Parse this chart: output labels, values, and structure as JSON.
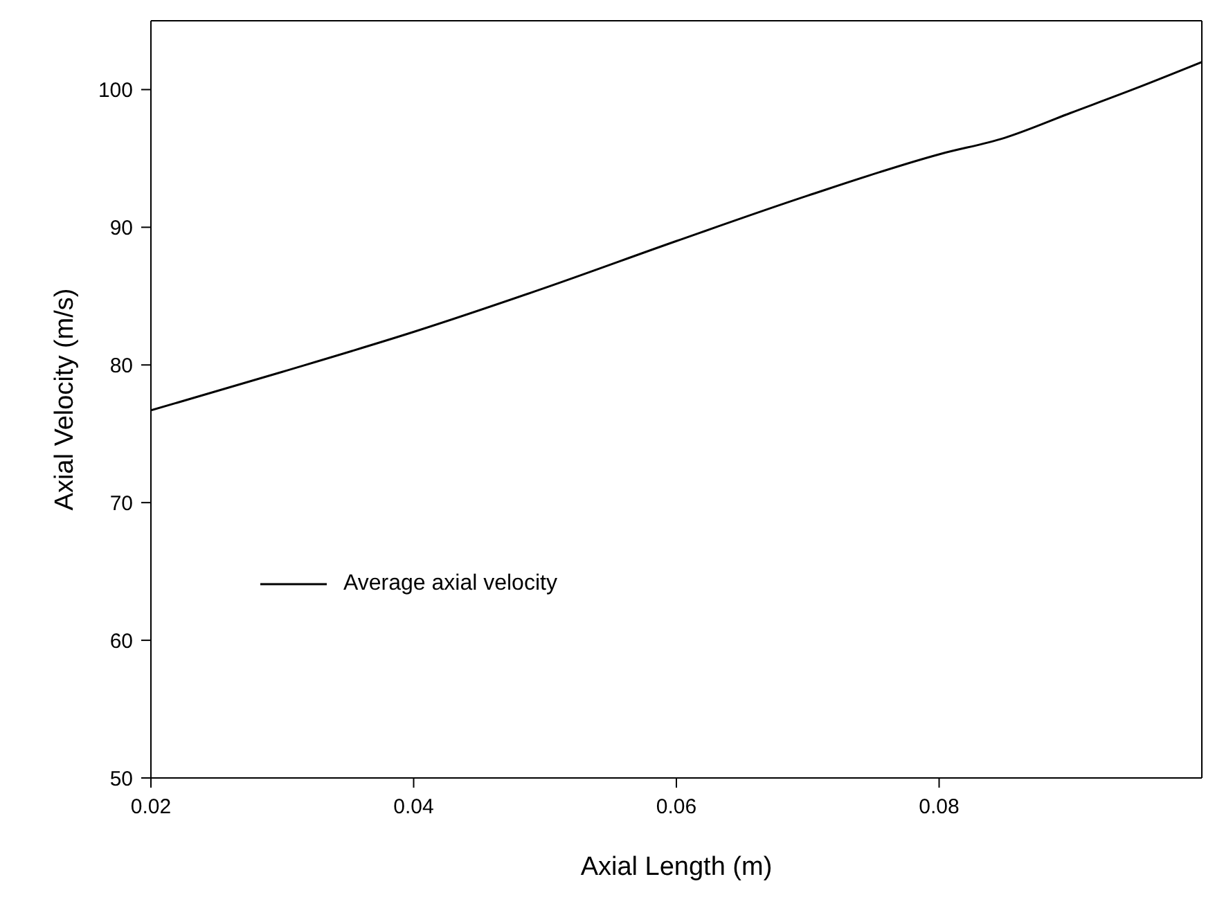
{
  "chart_data": {
    "type": "line",
    "xlabel": "Axial Length (m)",
    "ylabel": "Axial Velocity (m/s)",
    "x": [
      0.02,
      0.03,
      0.04,
      0.05,
      0.06,
      0.07,
      0.08,
      0.085,
      0.09,
      0.095,
      0.1
    ],
    "series": [
      {
        "name": "Average axial velocity",
        "color": "#000000",
        "values": [
          76.7,
          79.5,
          82.4,
          85.6,
          89.0,
          92.3,
          95.3,
          96.5,
          98.3,
          100.1,
          102.0
        ]
      }
    ],
    "xlim": [
      0.02,
      0.1
    ],
    "xticks": [
      0.02,
      0.04,
      0.06,
      0.08
    ],
    "ylim": [
      50,
      105
    ],
    "yticks": [
      50,
      60,
      70,
      80,
      90,
      100
    ],
    "grid": false,
    "legend": "left",
    "marker": "none",
    "line_style": "solid"
  }
}
